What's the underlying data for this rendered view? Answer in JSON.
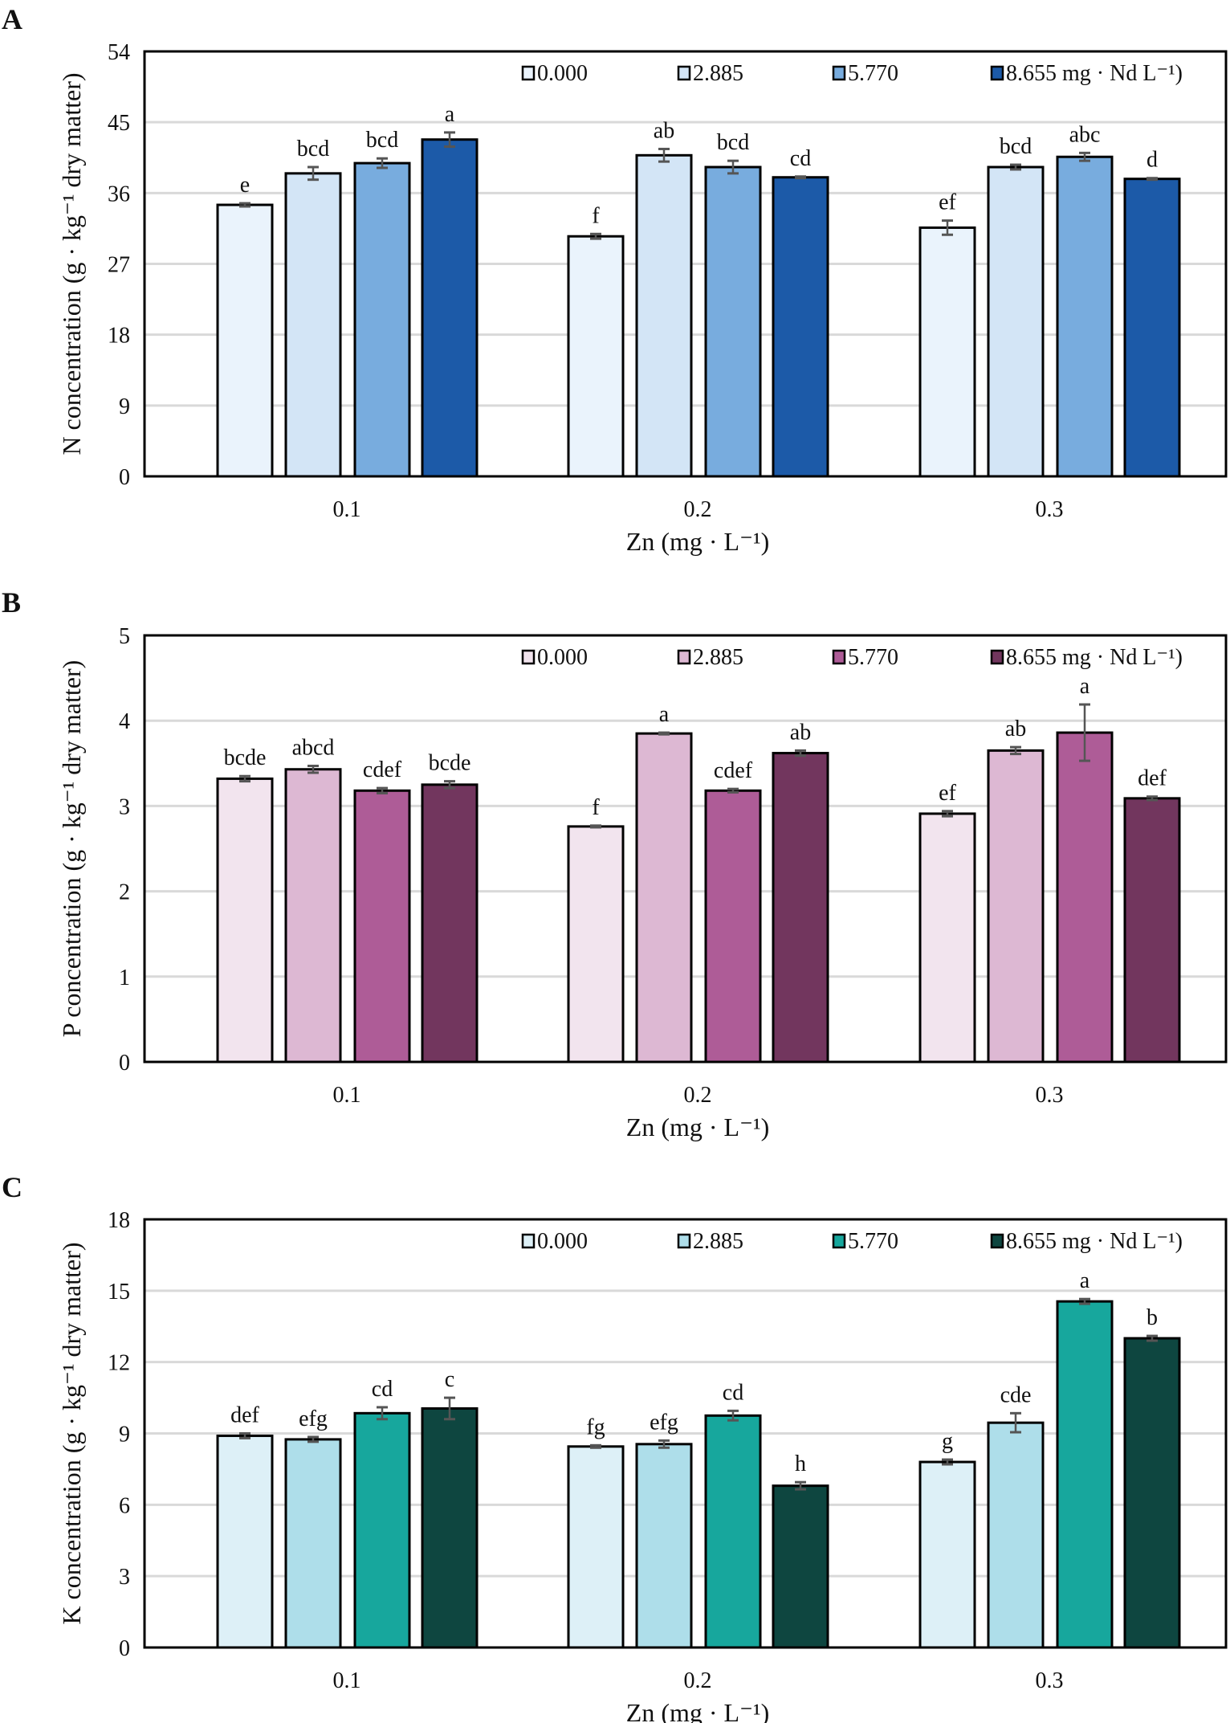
{
  "chart_data": [
    {
      "panel": "A",
      "type": "bar",
      "ylabel": "N concentration (g · kg⁻¹ dry matter)",
      "xlabel": "Zn (mg · L⁻¹)",
      "ylim": [
        0,
        54
      ],
      "yticks": [
        0,
        9,
        18,
        27,
        36,
        45,
        54
      ],
      "grid": true,
      "legend_position": "top",
      "categories": [
        "0.1",
        "0.2",
        "0.3"
      ],
      "series": [
        {
          "name": "0.000",
          "color": "#EAF3FC",
          "values": [
            34.5,
            30.5,
            31.6
          ],
          "errors": [
            0.2,
            0.3,
            0.9
          ],
          "letters": [
            "e",
            "f",
            "ef"
          ]
        },
        {
          "name": "2.885",
          "color": "#D3E5F6",
          "values": [
            38.5,
            40.8,
            39.3
          ],
          "errors": [
            0.8,
            0.8,
            0.3
          ],
          "letters": [
            "bcd",
            "ab",
            "bcd"
          ]
        },
        {
          "name": "5.770",
          "color": "#78ACDE",
          "values": [
            39.8,
            39.3,
            40.6
          ],
          "errors": [
            0.6,
            0.8,
            0.5
          ],
          "letters": [
            "bcd",
            "bcd",
            "abc"
          ]
        },
        {
          "name": "8.655 mg · Nd L⁻¹)",
          "color": "#1C5AA8",
          "values": [
            42.8,
            38.0,
            37.8
          ],
          "errors": [
            0.9,
            0.1,
            0.1
          ],
          "letters": [
            "a",
            "cd",
            "d"
          ]
        }
      ]
    },
    {
      "panel": "B",
      "type": "bar",
      "ylabel": "P concentration (g · kg⁻¹ dry matter)",
      "xlabel": "Zn (mg · L⁻¹)",
      "ylim": [
        0,
        5
      ],
      "yticks": [
        0,
        1,
        2,
        3,
        4,
        5
      ],
      "grid": true,
      "legend_position": "top",
      "categories": [
        "0.1",
        "0.2",
        "0.3"
      ],
      "series": [
        {
          "name": "0.000",
          "color": "#F2E4EE",
          "values": [
            3.32,
            2.76,
            2.91
          ],
          "errors": [
            0.03,
            0.01,
            0.03
          ],
          "letters": [
            "bcde",
            "f",
            "ef"
          ]
        },
        {
          "name": "2.885",
          "color": "#DDB8D3",
          "values": [
            3.43,
            3.85,
            3.65
          ],
          "errors": [
            0.04,
            0.01,
            0.04
          ],
          "letters": [
            "abcd",
            "a",
            "ab"
          ]
        },
        {
          "name": "5.770",
          "color": "#AE5C97",
          "values": [
            3.18,
            3.18,
            3.86
          ],
          "errors": [
            0.03,
            0.02,
            0.33
          ],
          "letters": [
            "cdef",
            "cdef",
            "a"
          ]
        },
        {
          "name": "8.655 mg · Nd L⁻¹)",
          "color": "#72365E",
          "values": [
            3.25,
            3.62,
            3.09
          ],
          "errors": [
            0.04,
            0.03,
            0.02
          ],
          "letters": [
            "bcde",
            "ab",
            "def"
          ]
        }
      ]
    },
    {
      "panel": "C",
      "type": "bar",
      "ylabel": "K concentration (g · kg⁻¹ dry matter)",
      "xlabel": "Zn (mg · L⁻¹)",
      "ylim": [
        0,
        18
      ],
      "yticks": [
        0,
        3,
        6,
        9,
        12,
        15,
        18
      ],
      "grid": true,
      "legend_position": "top",
      "categories": [
        "0.1",
        "0.2",
        "0.3"
      ],
      "series": [
        {
          "name": "0.000",
          "color": "#DDF0F7",
          "values": [
            8.9,
            8.45,
            7.8
          ],
          "errors": [
            0.1,
            0.05,
            0.1
          ],
          "letters": [
            "def",
            "fg",
            "g"
          ]
        },
        {
          "name": "2.885",
          "color": "#AEDEEA",
          "values": [
            8.75,
            8.55,
            9.45
          ],
          "errors": [
            0.1,
            0.15,
            0.4
          ],
          "letters": [
            "efg",
            "efg",
            "cde"
          ]
        },
        {
          "name": "5.770",
          "color": "#17A79D",
          "values": [
            9.85,
            9.75,
            14.55
          ],
          "errors": [
            0.25,
            0.2,
            0.1
          ],
          "letters": [
            "cd",
            "cd",
            "a"
          ]
        },
        {
          "name": "8.655 mg · Nd L⁻¹)",
          "color": "#0E4640",
          "values": [
            10.05,
            6.8,
            13.0
          ],
          "errors": [
            0.45,
            0.15,
            0.1
          ],
          "letters": [
            "c",
            "h",
            "b"
          ]
        }
      ]
    }
  ]
}
